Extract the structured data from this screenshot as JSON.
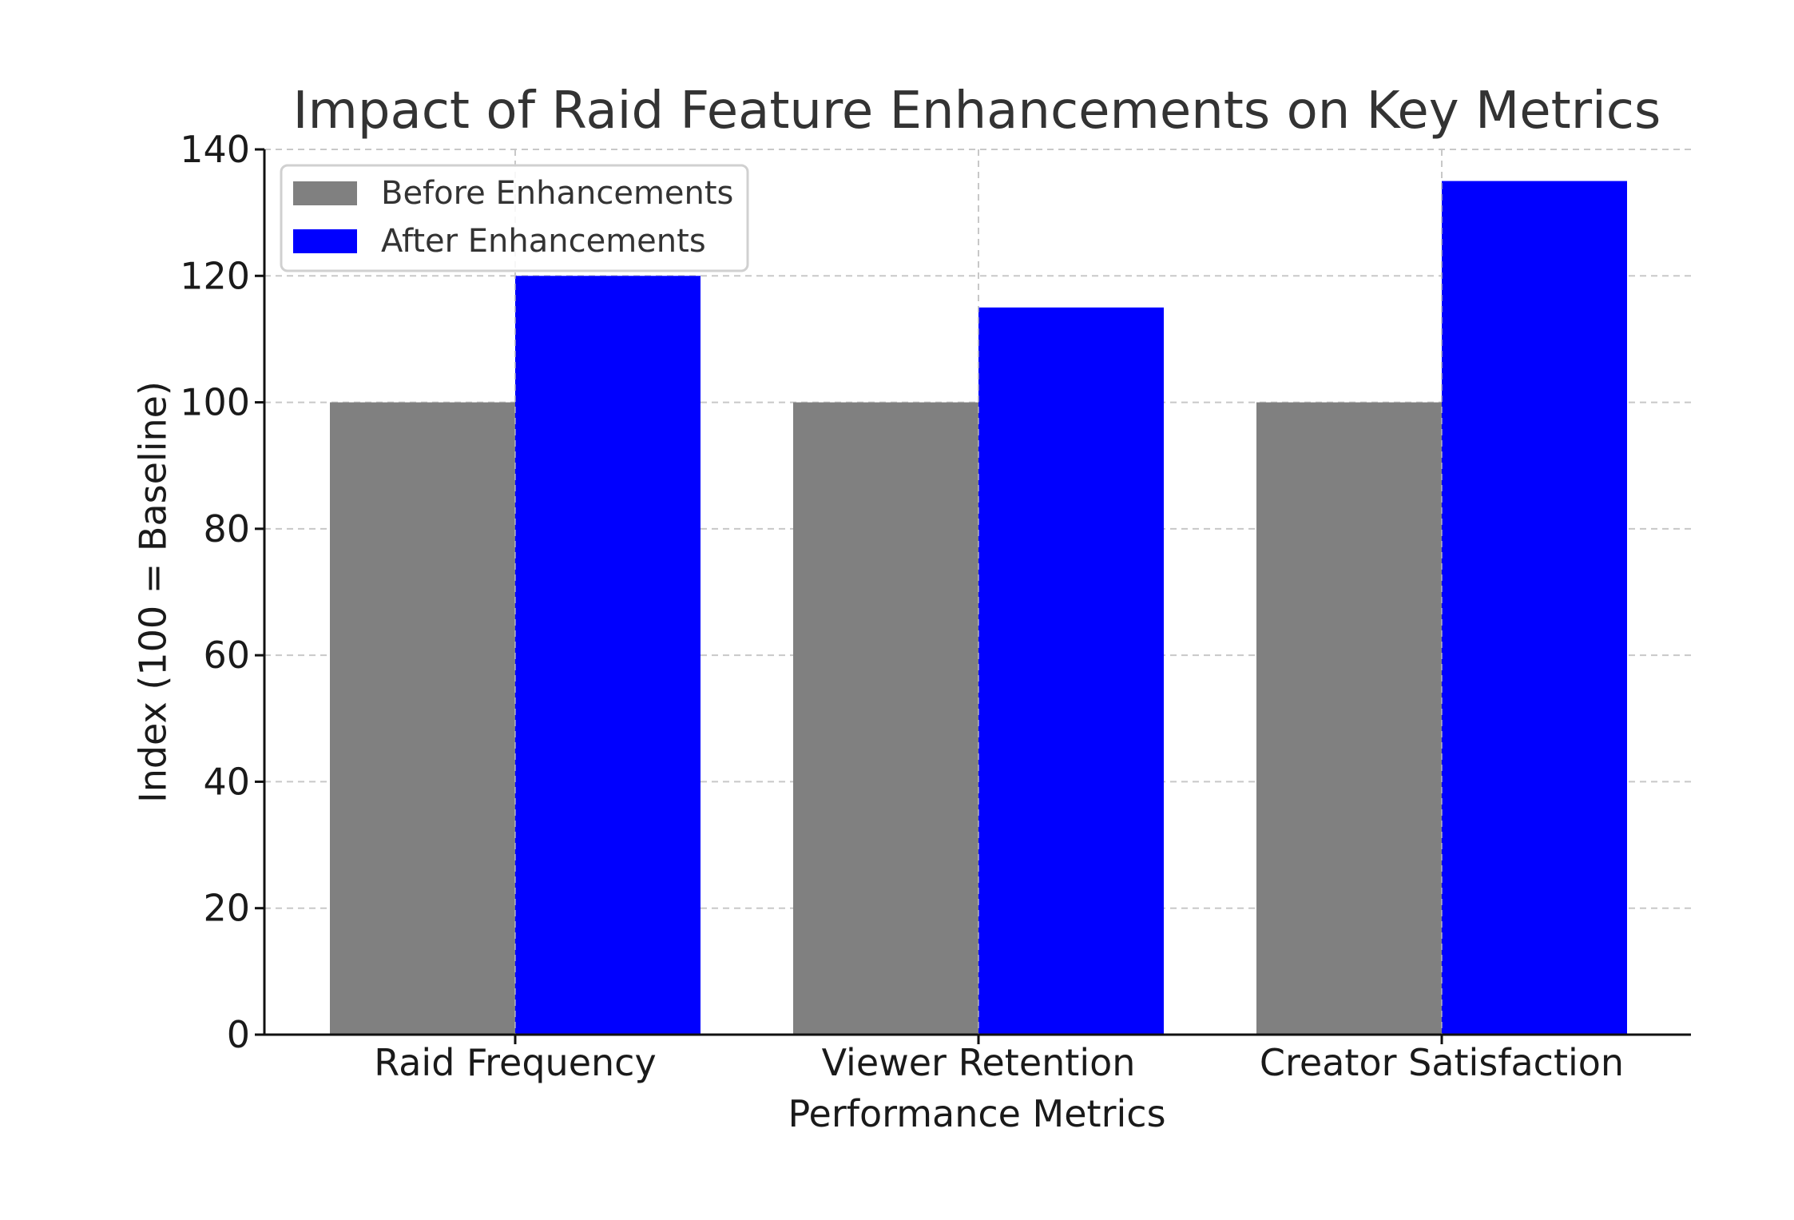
{
  "chart_data": {
    "type": "bar",
    "title": "Impact of Raid Feature Enhancements on Key Metrics",
    "xlabel": "Performance Metrics",
    "ylabel": "Index (100 = Baseline)",
    "categories": [
      "Raid Frequency",
      "Viewer Retention",
      "Creator Satisfaction"
    ],
    "series": [
      {
        "name": "Before Enhancements",
        "color": "#808080",
        "values": [
          100,
          100,
          100
        ]
      },
      {
        "name": "After Enhancements",
        "color": "#0000ff",
        "values": [
          120,
          115,
          135
        ]
      }
    ],
    "ylim": [
      0,
      140
    ],
    "yticks": [
      "0",
      "20",
      "40",
      "60",
      "80",
      "100",
      "120",
      "140"
    ],
    "grid": true,
    "legend_position": "top-left"
  }
}
